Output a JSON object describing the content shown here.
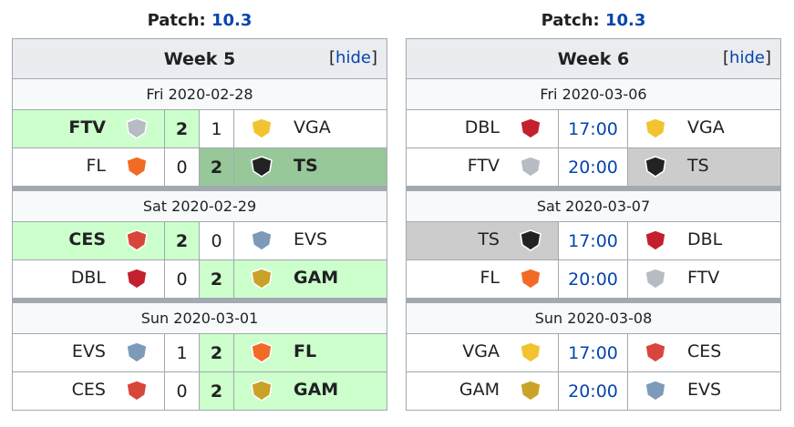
{
  "panels": [
    {
      "patch_label": "Patch:",
      "patch": "10.3",
      "week": "Week 5",
      "hide": {
        "open": "[",
        "link": "hide",
        "close": "]"
      },
      "days": [
        {
          "date": "Fri 2020-02-28",
          "matches": [
            {
              "team1": "FTV",
              "logo1": "#b7bcc4",
              "score1": 2,
              "score2": 1,
              "team2": "VGA",
              "logo2": "#f2c230",
              "bg1": "#ccffcc"
            },
            {
              "team1": "FL",
              "logo1": "#f26a24",
              "score1": 0,
              "score2": 2,
              "team2": "TS",
              "logo2": "#222222",
              "bg2": "#98c89a"
            }
          ]
        },
        {
          "date": "Sat 2020-02-29",
          "matches": [
            {
              "team1": "CES",
              "logo1": "#d8453a",
              "score1": 2,
              "score2": 0,
              "team2": "EVS",
              "logo2": "#7d9ab8",
              "bg1": "#ccffcc"
            },
            {
              "team1": "DBL",
              "logo1": "#c41f2c",
              "score1": 0,
              "score2": 2,
              "team2": "GAM",
              "logo2": "#c9a227",
              "bg2": "#ccffcc"
            }
          ]
        },
        {
          "date": "Sun 2020-03-01",
          "matches": [
            {
              "team1": "EVS",
              "logo1": "#7d9ab8",
              "score1": 1,
              "score2": 2,
              "team2": "FL",
              "logo2": "#f26a24",
              "bg2": "#ccffcc"
            },
            {
              "team1": "CES",
              "logo1": "#d8453a",
              "score1": 0,
              "score2": 2,
              "team2": "GAM",
              "logo2": "#c9a227",
              "bg2": "#ccffcc"
            }
          ]
        }
      ]
    },
    {
      "patch_label": "Patch:",
      "patch": "10.3",
      "week": "Week 6",
      "hide": {
        "open": "[",
        "link": "hide",
        "close": "]"
      },
      "days": [
        {
          "date": "Fri 2020-03-06",
          "matches": [
            {
              "team1": "DBL",
              "logo1": "#c41f2c",
              "time": "17:00",
              "team2": "VGA",
              "logo2": "#f2c230"
            },
            {
              "team1": "FTV",
              "logo1": "#b7bcc4",
              "time": "20:00",
              "team2": "TS",
              "logo2": "#222222",
              "bg2": "#cccccc"
            }
          ]
        },
        {
          "date": "Sat 2020-03-07",
          "matches": [
            {
              "team1": "TS",
              "logo1": "#222222",
              "time": "17:00",
              "team2": "DBL",
              "logo2": "#c41f2c",
              "bg1": "#cccccc"
            },
            {
              "team1": "FL",
              "logo1": "#f26a24",
              "time": "20:00",
              "team2": "FTV",
              "logo2": "#b7bcc4"
            }
          ]
        },
        {
          "date": "Sun 2020-03-08",
          "matches": [
            {
              "team1": "VGA",
              "logo1": "#f2c230",
              "time": "17:00",
              "team2": "CES",
              "logo2": "#d8453a"
            },
            {
              "team1": "GAM",
              "logo1": "#c9a227",
              "time": "20:00",
              "team2": "EVS",
              "logo2": "#7d9ab8"
            }
          ]
        }
      ]
    }
  ]
}
